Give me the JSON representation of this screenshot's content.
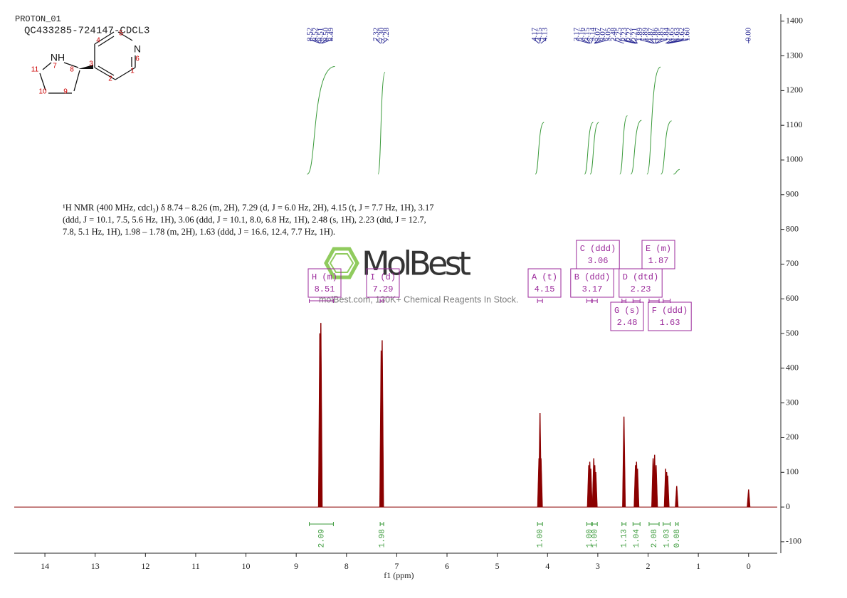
{
  "chart_data": {
    "type": "nmr",
    "title": "PROTON_01",
    "subtitle": "QC433285-724147-CDCL3",
    "xlabel": "f1 (ppm)",
    "xlim": [
      14.61,
      -0.57
    ],
    "xticks": [
      14,
      13,
      12,
      11,
      10,
      9,
      8,
      7,
      6,
      5,
      4,
      3,
      2,
      1,
      0
    ],
    "ylim": [
      -133,
      1420
    ],
    "yticks": [
      -100,
      0,
      100,
      200,
      300,
      400,
      500,
      600,
      700,
      800,
      900,
      1000,
      1100,
      1200,
      1300,
      1400
    ],
    "color": "#8b0000",
    "peaks": [
      {
        "shift": 8.53,
        "height": 500
      },
      {
        "shift": 8.51,
        "height": 530
      },
      {
        "shift": 7.31,
        "height": 450
      },
      {
        "shift": 7.29,
        "height": 480
      },
      {
        "shift": 4.17,
        "height": 140
      },
      {
        "shift": 4.15,
        "height": 270
      },
      {
        "shift": 4.13,
        "height": 140
      },
      {
        "shift": 3.18,
        "height": 120
      },
      {
        "shift": 3.16,
        "height": 130
      },
      {
        "shift": 3.14,
        "height": 110
      },
      {
        "shift": 3.08,
        "height": 140
      },
      {
        "shift": 3.06,
        "height": 120
      },
      {
        "shift": 3.04,
        "height": 100
      },
      {
        "shift": 2.48,
        "height": 260
      },
      {
        "shift": 2.25,
        "height": 120
      },
      {
        "shift": 2.23,
        "height": 130
      },
      {
        "shift": 2.21,
        "height": 110
      },
      {
        "shift": 1.9,
        "height": 140
      },
      {
        "shift": 1.87,
        "height": 150
      },
      {
        "shift": 1.84,
        "height": 120
      },
      {
        "shift": 1.65,
        "height": 110
      },
      {
        "shift": 1.63,
        "height": 100
      },
      {
        "shift": 1.61,
        "height": 90
      },
      {
        "shift": 1.43,
        "height": 60
      },
      {
        "shift": 0,
        "height": 50
      }
    ],
    "peak_labels": [
      {
        "value": 8.52,
        "label": "8.52"
      },
      {
        "value": 8.52,
        "label": "8.52"
      },
      {
        "value": 8.51,
        "label": "8.51"
      },
      {
        "value": 8.5,
        "label": "8.50"
      },
      {
        "value": 8.49,
        "label": "8.49"
      },
      {
        "value": 7.32,
        "label": "7.32"
      },
      {
        "value": 7.3,
        "label": "7.30"
      },
      {
        "value": 7.28,
        "label": "7.28"
      },
      {
        "value": 4.17,
        "label": "4.17"
      },
      {
        "value": 4.15,
        "label": "4.15"
      },
      {
        "value": 4.13,
        "label": "4.13"
      },
      {
        "value": 3.17,
        "label": "3.17"
      },
      {
        "value": 3.16,
        "label": "3.16"
      },
      {
        "value": 3.15,
        "label": "3.15"
      },
      {
        "value": 3.14,
        "label": "3.14"
      },
      {
        "value": 3.07,
        "label": "3.07"
      },
      {
        "value": 3.07,
        "label": "3.07"
      },
      {
        "value": 3.05,
        "label": "3.05"
      },
      {
        "value": 2.48,
        "label": "2.48"
      },
      {
        "value": 2.25,
        "label": "2.25"
      },
      {
        "value": 2.23,
        "label": "2.23"
      },
      {
        "value": 2.22,
        "label": "2.22"
      },
      {
        "value": 2.21,
        "label": "2.21"
      },
      {
        "value": 1.89,
        "label": "1.89"
      },
      {
        "value": 1.89,
        "label": "1.89"
      },
      {
        "value": 1.87,
        "label": "1.87"
      },
      {
        "value": 1.86,
        "label": "1.86"
      },
      {
        "value": 1.85,
        "label": "1.85"
      },
      {
        "value": 1.84,
        "label": "1.84"
      },
      {
        "value": 1.65,
        "label": "1.65"
      },
      {
        "value": 1.63,
        "label": "1.63"
      },
      {
        "value": 1.62,
        "label": "1.62"
      },
      {
        "value": 1.6,
        "label": "1.60"
      },
      {
        "value": 0,
        "label": "0.00"
      }
    ],
    "multiplets": [
      {
        "name": "H (m)",
        "shift": "8.51",
        "from": 8.74,
        "to": 8.26
      },
      {
        "name": "I (d)",
        "shift": "7.29",
        "from": 7.33,
        "to": 7.26
      },
      {
        "name": "A (t)",
        "shift": "4.15",
        "from": 4.2,
        "to": 4.1
      },
      {
        "name": "B (ddd)",
        "shift": "3.17",
        "from": 3.22,
        "to": 3.12
      },
      {
        "name": "C (ddd)",
        "shift": "3.06",
        "from": 3.11,
        "to": 3.01
      },
      {
        "name": "D (dtd)",
        "shift": "2.23",
        "from": 2.3,
        "to": 2.16
      },
      {
        "name": "E (m)",
        "shift": "1.87",
        "from": 1.98,
        "to": 1.78
      },
      {
        "name": "G (s)",
        "shift": "2.48",
        "from": 2.52,
        "to": 2.44
      },
      {
        "name": "F (ddd)",
        "shift": "1.63",
        "from": 1.7,
        "to": 1.56
      }
    ],
    "integrals": [
      {
        "from": 8.74,
        "to": 8.26,
        "label": "2.09"
      },
      {
        "from": 7.33,
        "to": 7.26,
        "label": "1.98"
      },
      {
        "from": 4.2,
        "to": 4.1,
        "label": "1.00"
      },
      {
        "from": 3.22,
        "to": 3.12,
        "label": "1.00"
      },
      {
        "from": 3.11,
        "to": 3.01,
        "label": "1.00"
      },
      {
        "from": 2.52,
        "to": 2.44,
        "label": "1.13"
      },
      {
        "from": 2.3,
        "to": 2.16,
        "label": "1.04"
      },
      {
        "from": 1.98,
        "to": 1.78,
        "label": "2.08"
      },
      {
        "from": 1.7,
        "to": 1.56,
        "label": "1.03"
      },
      {
        "from": 1.45,
        "to": 1.4,
        "label": "0.08"
      }
    ],
    "description_lines": [
      "¹H NMR (400 MHz, cdcl₃) δ 8.74 – 8.26 (m, 2H), 7.29 (d, J = 6.0 Hz, 2H), 4.15 (t, J = 7.7 Hz, 1H), 3.17",
      "(ddd, J = 10.1, 7.5, 5.6 Hz, 1H), 3.06 (ddd, J = 10.1, 8.0, 6.8 Hz, 1H), 2.48 (s, 1H), 2.23 (dtd, J = 12.7,",
      "7.8, 5.1 Hz, 1H), 1.98 – 1.78 (m, 2H), 1.63 (ddd, J = 16.6, 12.4, 7.7 Hz, 1H)."
    ],
    "watermark": {
      "brand": "MolBest",
      "tagline": "molBest.com, 130K+ Chemical Reagents In Stock."
    },
    "structure": {
      "atoms": [
        "NH",
        "7",
        "11",
        "8",
        "10",
        "9",
        "3",
        "4",
        "5",
        "N",
        "6",
        "1",
        "2"
      ]
    }
  }
}
